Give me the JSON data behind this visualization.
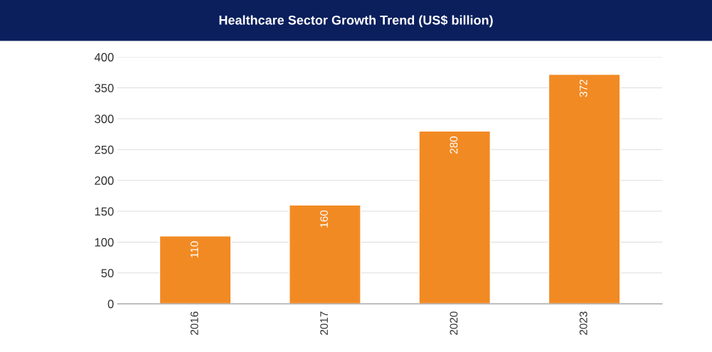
{
  "chart_data": {
    "type": "bar",
    "title": "Healthcare Sector Growth Trend (US$ billion)",
    "categories": [
      "2016",
      "2017",
      "2020",
      "2023"
    ],
    "values": [
      110,
      160,
      280,
      372
    ],
    "color": "#f28a24",
    "ylim": [
      0,
      400
    ],
    "yticks": [
      0,
      50,
      100,
      150,
      200,
      250,
      300,
      350,
      400
    ],
    "grid": "y",
    "data_labels": true
  }
}
